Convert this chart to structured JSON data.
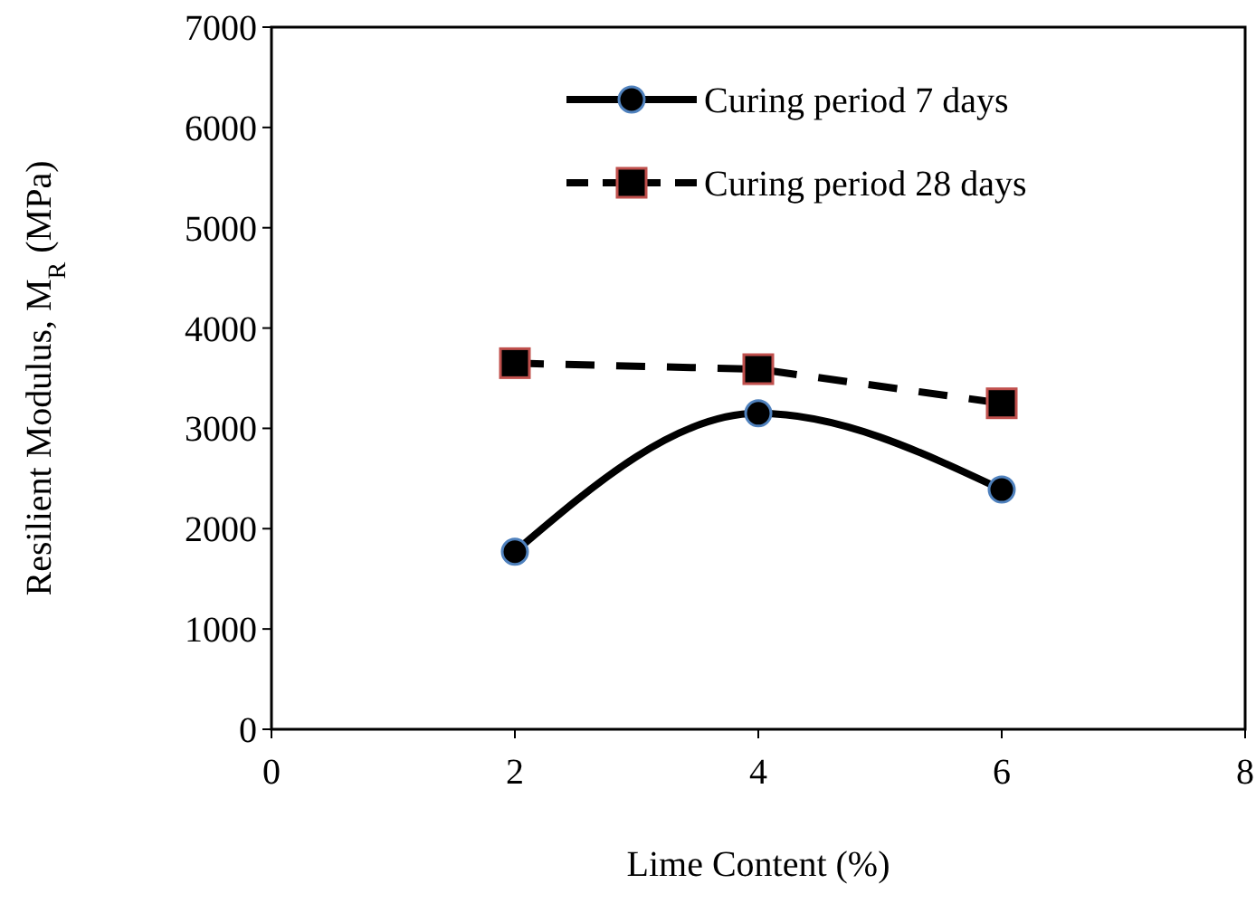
{
  "chart_data": {
    "type": "line",
    "xlabel": "Lime Content (%)",
    "ylabel": "Resilient Modulus, M$_{R}$ (MPa)",
    "x": [
      2,
      4,
      6
    ],
    "xlim": [
      0,
      8
    ],
    "xticks": [
      0,
      2,
      4,
      6,
      8
    ],
    "ylim": [
      0,
      7000
    ],
    "yticks": [
      0,
      1000,
      2000,
      3000,
      4000,
      5000,
      6000,
      7000
    ],
    "grid": false,
    "legend": "top right",
    "series": [
      {
        "name": "Curing period 7 days",
        "color": "#000000",
        "values": [
          1770,
          3150,
          2390
        ],
        "marker": "circle",
        "line_style": "solid"
      },
      {
        "name": "Curing period 28 days",
        "color": "#000000",
        "values": [
          3650,
          3590,
          3250
        ],
        "marker": "square",
        "line_style": "dashed"
      }
    ]
  }
}
